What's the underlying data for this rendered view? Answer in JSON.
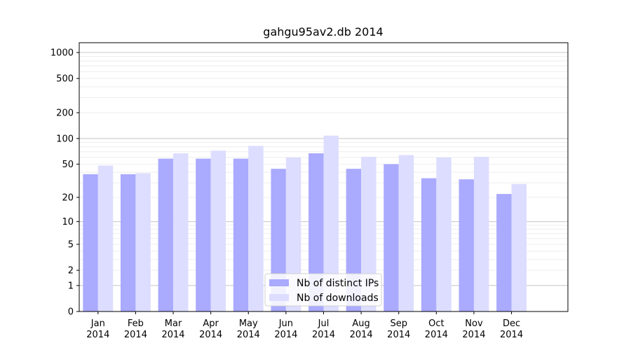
{
  "chart_data": {
    "type": "bar",
    "title": "gahgu95av2.db 2014",
    "xlabel": "",
    "ylabel": "",
    "yscale": "log(1+y)",
    "ylim": [
      0,
      1300
    ],
    "categories": [
      {
        "month": "Jan",
        "year": "2014"
      },
      {
        "month": "Feb",
        "year": "2014"
      },
      {
        "month": "Mar",
        "year": "2014"
      },
      {
        "month": "Apr",
        "year": "2014"
      },
      {
        "month": "May",
        "year": "2014"
      },
      {
        "month": "Jun",
        "year": "2014"
      },
      {
        "month": "Jul",
        "year": "2014"
      },
      {
        "month": "Aug",
        "year": "2014"
      },
      {
        "month": "Sep",
        "year": "2014"
      },
      {
        "month": "Oct",
        "year": "2014"
      },
      {
        "month": "Nov",
        "year": "2014"
      },
      {
        "month": "Dec",
        "year": "2014"
      }
    ],
    "series": [
      {
        "name": "Nb of distinct IPs",
        "color": "#aaaaff",
        "values": [
          38,
          38,
          58,
          58,
          58,
          44,
          67,
          44,
          50,
          34,
          33,
          22
        ]
      },
      {
        "name": "Nb of downloads",
        "color": "#ddddff",
        "values": [
          48,
          39,
          67,
          72,
          82,
          60,
          108,
          61,
          64,
          60,
          61,
          29
        ]
      }
    ],
    "yticks": [
      {
        "value": 0,
        "label": "0"
      },
      {
        "value": 1,
        "label": "1"
      },
      {
        "value": 2,
        "label": "2"
      },
      {
        "value": 5,
        "label": "5"
      },
      {
        "value": 10,
        "label": "10"
      },
      {
        "value": 20,
        "label": "20"
      },
      {
        "value": 50,
        "label": "50"
      },
      {
        "value": 100,
        "label": "100"
      },
      {
        "value": 200,
        "label": "200"
      },
      {
        "value": 500,
        "label": "500"
      },
      {
        "value": 1000,
        "label": "1000"
      }
    ],
    "grid": true,
    "legend_position": "lower-center"
  }
}
